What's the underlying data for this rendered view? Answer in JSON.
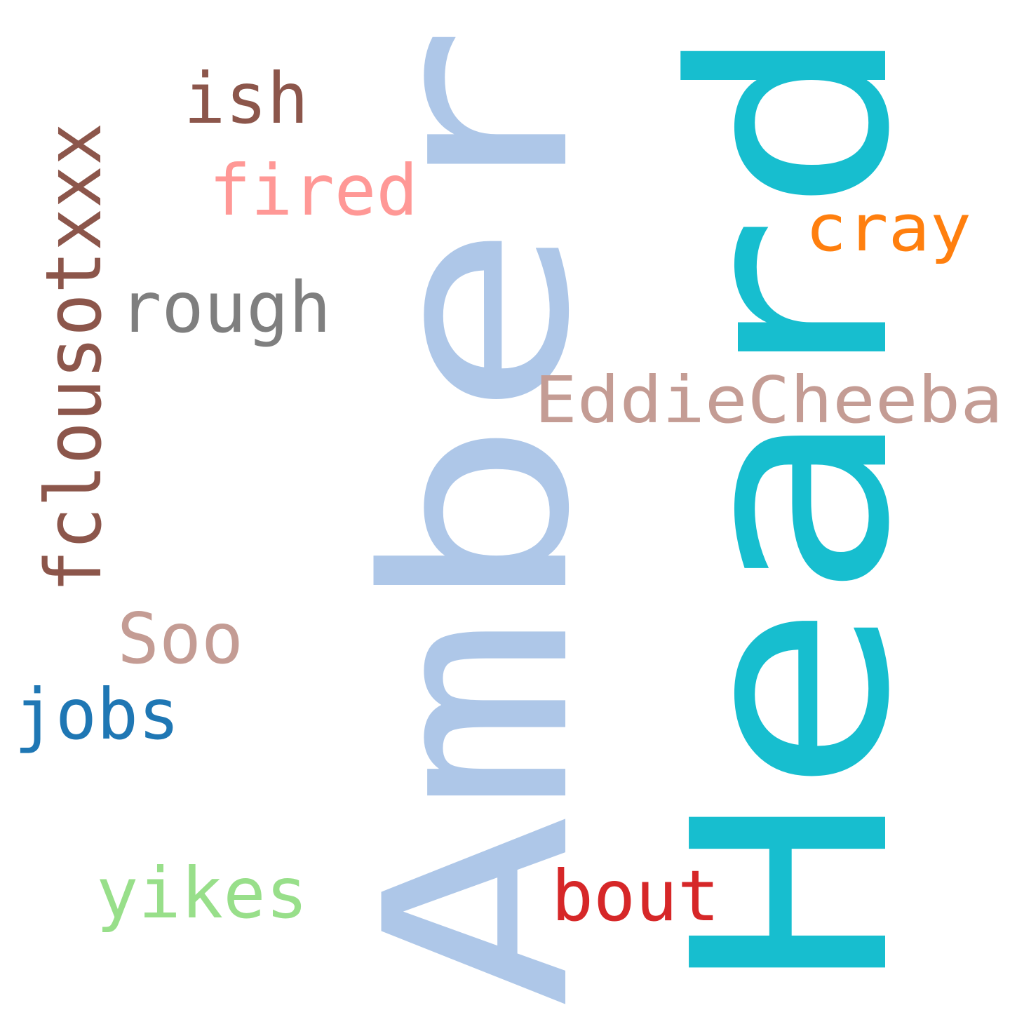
{
  "words": {
    "amber": {
      "text": "Amber",
      "color": "#aec7e8"
    },
    "heard": {
      "text": "Heard",
      "color": "#17becf"
    },
    "fclousotxxx": {
      "text": "fclousotxxx",
      "color": "#8c564b"
    },
    "ish": {
      "text": "ish",
      "color": "#8c564b"
    },
    "fired": {
      "text": "fired",
      "color": "#ff9896"
    },
    "cray": {
      "text": "cray",
      "color": "#ff7f0e"
    },
    "rough": {
      "text": "rough",
      "color": "#7f7f7f"
    },
    "eddiecheeba": {
      "text": "EddieCheeba",
      "color": "#c49c94"
    },
    "soo": {
      "text": "Soo",
      "color": "#c49c94"
    },
    "jobs": {
      "text": "jobs",
      "color": "#1f77b4"
    },
    "yikes": {
      "text": "yikes",
      "color": "#98df8a"
    },
    "bout": {
      "text": "bout",
      "color": "#d62728"
    }
  }
}
